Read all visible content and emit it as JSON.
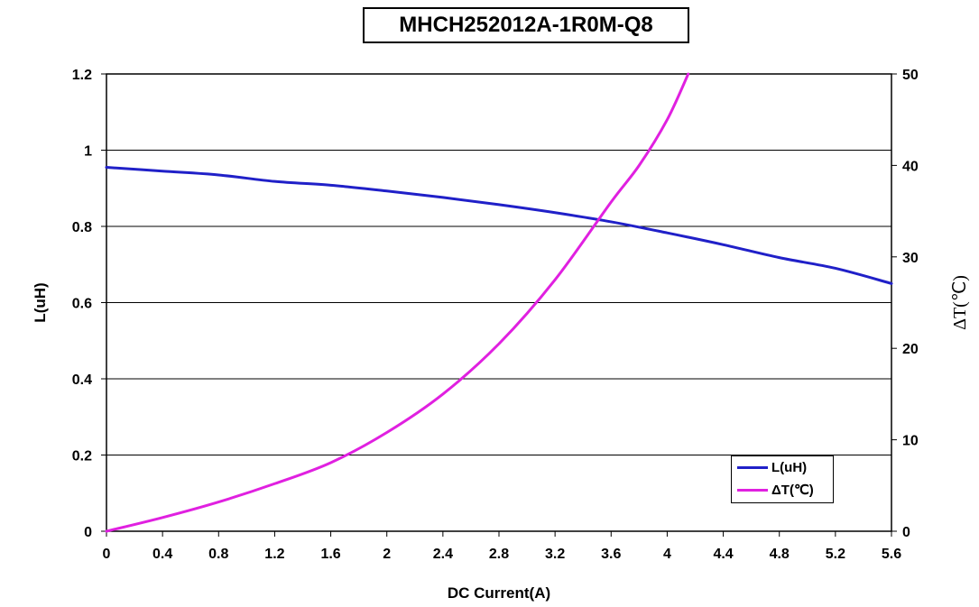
{
  "chart_data": {
    "type": "line",
    "title": "MHCH252012A-1R0M-Q8",
    "xlabel": "DC Current(A)",
    "ylabel": "L(uH)",
    "y2label": "ΔT(℃)",
    "xlim": [
      0,
      5.6
    ],
    "ylim": [
      0,
      1.2
    ],
    "y2lim": [
      0,
      50
    ],
    "x_ticks": [
      "0",
      "0.4",
      "0.8",
      "1.2",
      "1.6",
      "2",
      "2.4",
      "2.8",
      "3.2",
      "3.6",
      "4",
      "4.4",
      "4.8",
      "5.2",
      "5.6"
    ],
    "y_ticks": [
      "0",
      "0.2",
      "0.4",
      "0.6",
      "0.8",
      "1",
      "1.2"
    ],
    "y2_ticks": [
      "0",
      "10",
      "20",
      "30",
      "40",
      "50"
    ],
    "grid": "horizontal",
    "legend_position": "bottom-right",
    "series": [
      {
        "name": "L(uH)",
        "axis": "left",
        "color": "#2020c8",
        "x": [
          0,
          0.4,
          0.8,
          1.2,
          1.6,
          2.0,
          2.4,
          2.8,
          3.2,
          3.6,
          4.0,
          4.4,
          4.8,
          5.2,
          5.6
        ],
        "y": [
          0.955,
          0.945,
          0.935,
          0.918,
          0.908,
          0.893,
          0.876,
          0.857,
          0.836,
          0.812,
          0.783,
          0.752,
          0.718,
          0.69,
          0.65
        ]
      },
      {
        "name": "ΔT(℃)",
        "axis": "right",
        "color": "#e020e0",
        "x": [
          0,
          0.4,
          0.8,
          1.2,
          1.6,
          2.0,
          2.4,
          2.8,
          3.2,
          3.6,
          3.8,
          4.0,
          4.15
        ],
        "y": [
          0,
          1.5,
          3.2,
          5.2,
          7.5,
          10.8,
          15.0,
          20.5,
          27.5,
          36.0,
          40.0,
          45.0,
          50.0
        ]
      }
    ]
  }
}
